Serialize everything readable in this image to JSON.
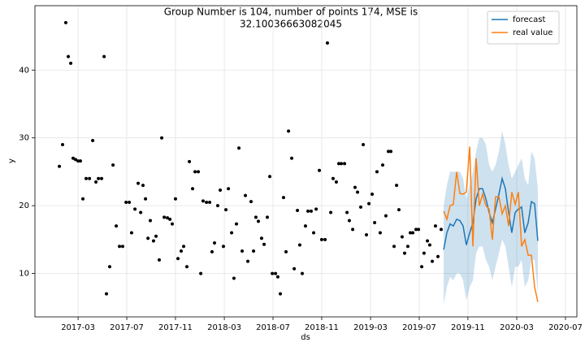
{
  "chart_data": {
    "type": "line",
    "title": [
      "Group Number is 104, number of points 174, MSE is",
      "32.10036663082045"
    ],
    "xlabel": "ds",
    "ylabel": "y",
    "xlim": [
      2016.872,
      2020.578
    ],
    "ylim": [
      3.6,
      49.5
    ],
    "xticks": [
      {
        "value": 2017.167,
        "label": "2017-03"
      },
      {
        "value": 2017.5,
        "label": "2017-07"
      },
      {
        "value": 2017.833,
        "label": "2017-11"
      },
      {
        "value": 2018.167,
        "label": "2018-03"
      },
      {
        "value": 2018.5,
        "label": "2018-07"
      },
      {
        "value": 2018.833,
        "label": "2018-11"
      },
      {
        "value": 2019.167,
        "label": "2019-03"
      },
      {
        "value": 2019.5,
        "label": "2019-07"
      },
      {
        "value": 2019.833,
        "label": "2019-11"
      },
      {
        "value": 2020.167,
        "label": "2020-03"
      },
      {
        "value": 2020.5,
        "label": "2020-07"
      }
    ],
    "yticks": [
      10,
      20,
      30,
      40
    ],
    "grid": true,
    "legend": "upper right",
    "points": {
      "color": "#000000",
      "x": [
        2017.039,
        2017.061,
        2017.083,
        2017.1,
        2017.117,
        2017.133,
        2017.15,
        2017.167,
        2017.183,
        2017.2,
        2017.222,
        2017.245,
        2017.267,
        2017.289,
        2017.306,
        2017.328,
        2017.345,
        2017.361,
        2017.383,
        2017.406,
        2017.428,
        2017.45,
        2017.472,
        2017.495,
        2017.517,
        2017.533,
        2017.556,
        2017.578,
        2017.595,
        2017.611,
        2017.628,
        2017.645,
        2017.661,
        2017.683,
        2017.7,
        2017.722,
        2017.739,
        2017.756,
        2017.778,
        2017.795,
        2017.811,
        2017.833,
        2017.85,
        2017.872,
        2017.889,
        2017.911,
        2017.928,
        2017.95,
        2017.967,
        2017.989,
        2018.006,
        2018.022,
        2018.045,
        2018.067,
        2018.083,
        2018.1,
        2018.122,
        2018.139,
        2018.161,
        2018.178,
        2018.195,
        2018.217,
        2018.233,
        2018.25,
        2018.267,
        2018.289,
        2018.311,
        2018.328,
        2018.35,
        2018.367,
        2018.383,
        2018.4,
        2018.422,
        2018.439,
        2018.461,
        2018.478,
        2018.495,
        2018.517,
        2018.533,
        2018.55,
        2018.572,
        2018.589,
        2018.606,
        2018.628,
        2018.645,
        2018.667,
        2018.683,
        2018.7,
        2018.722,
        2018.739,
        2018.761,
        2018.778,
        2018.795,
        2018.817,
        2018.833,
        2018.856,
        2018.872,
        2018.895,
        2018.911,
        2018.933,
        2018.95,
        2018.967,
        2018.989,
        2019.006,
        2019.022,
        2019.045,
        2019.061,
        2019.078,
        2019.1,
        2019.117,
        2019.139,
        2019.156,
        2019.178,
        2019.195,
        2019.211,
        2019.233,
        2019.25,
        2019.272,
        2019.289,
        2019.306,
        2019.328,
        2019.345,
        2019.361,
        2019.383,
        2019.4,
        2019.422,
        2019.439,
        2019.456,
        2019.478,
        2019.495,
        2019.517,
        2019.533,
        2019.556,
        2019.572,
        2019.589,
        2019.611,
        2019.628,
        2019.65
      ],
      "values": [
        25.8,
        29,
        47,
        42,
        41,
        27,
        26.8,
        26.6,
        26.6,
        21,
        24,
        24,
        29.6,
        23.5,
        24,
        24,
        42,
        7,
        11,
        26,
        17,
        14,
        14,
        20.5,
        20.5,
        16,
        19.5,
        23.3,
        19,
        23,
        21,
        15.2,
        17.8,
        14.8,
        15.5,
        12,
        30,
        18.3,
        18.2,
        18,
        17.3,
        21,
        12.2,
        13.3,
        14,
        11,
        26.5,
        22.5,
        25,
        25,
        10,
        20.7,
        20.5,
        20.5,
        13.2,
        14.5,
        20,
        22.3,
        14,
        19.4,
        22.5,
        16,
        9.3,
        17.3,
        28.5,
        13.3,
        21.5,
        11.8,
        20.6,
        13.3,
        18.3,
        17.7,
        15.2,
        14.3,
        18.3,
        24.3,
        10,
        10,
        9.5,
        7,
        21.2,
        13.2,
        31,
        27,
        10.7,
        19.3,
        14.2,
        10,
        17,
        19.2,
        19.2,
        16,
        19.5,
        25.2,
        15,
        15,
        44,
        19,
        24,
        23.5,
        26.2,
        26.2,
        26.2,
        19,
        17.8,
        16.5,
        22.7,
        22,
        19.8,
        29,
        15.7,
        20.3,
        21.7,
        17.5,
        25,
        16,
        26,
        18.5,
        28,
        28,
        14,
        23,
        19.4,
        15.4,
        13,
        14,
        16,
        16,
        16.5,
        16.5,
        11,
        13,
        14.8,
        14.2,
        11.8,
        17,
        12.5,
        16.5
      ]
    },
    "series": [
      {
        "name": "forecast",
        "color": "#1f77b4",
        "x": [
          2019.667,
          2019.689,
          2019.711,
          2019.733,
          2019.756,
          2019.778,
          2019.8,
          2019.822,
          2019.845,
          2019.867,
          2019.889,
          2019.911,
          2019.933,
          2019.956,
          2019.978,
          2020.0,
          2020.022,
          2020.045,
          2020.067,
          2020.089,
          2020.111,
          2020.133,
          2020.156,
          2020.178,
          2020.2,
          2020.222,
          2020.245,
          2020.267,
          2020.289,
          2020.311
        ],
        "values": [
          13.5,
          16,
          17.3,
          17,
          18,
          17.8,
          17,
          14.2,
          16,
          17.5,
          21,
          22.5,
          22.5,
          21,
          19,
          17.5,
          19.5,
          21.7,
          24,
          22.5,
          19,
          16,
          19,
          19.5,
          19.8,
          16,
          17.5,
          20.6,
          20.3,
          14.8
        ],
        "upper": [
          20,
          23,
          25,
          25,
          25,
          25,
          24,
          21,
          23,
          25,
          28,
          30,
          30,
          29,
          26,
          25,
          26,
          28,
          31,
          29,
          26,
          24,
          25,
          26,
          27,
          24,
          23,
          28,
          27,
          22.5
        ],
        "lower": [
          5.5,
          8,
          9.5,
          9,
          10,
          10,
          9,
          6,
          8,
          9,
          13,
          14,
          14,
          12,
          11,
          9,
          11,
          13,
          15,
          14,
          11,
          8,
          11,
          11,
          12,
          8,
          9,
          12,
          12,
          7
        ]
      },
      {
        "name": "real value",
        "color": "#ff7f0e",
        "x": [
          2019.667,
          2019.689,
          2019.711,
          2019.733,
          2019.756,
          2019.778,
          2019.8,
          2019.822,
          2019.845,
          2019.867,
          2019.889,
          2019.911,
          2019.933,
          2019.956,
          2019.978,
          2020.0,
          2020.022,
          2020.045,
          2020.067,
          2020.089,
          2020.111,
          2020.133,
          2020.156,
          2020.178,
          2020.2,
          2020.222,
          2020.245,
          2020.267,
          2020.289,
          2020.311
        ],
        "values": [
          19.2,
          18,
          20,
          20.2,
          25,
          21.8,
          21.7,
          22,
          28.7,
          14,
          27,
          20,
          21.7,
          20,
          19.5,
          15,
          21.3,
          21.3,
          18.8,
          20,
          17,
          22,
          20.2,
          22,
          14,
          15,
          12.7,
          12.7,
          8,
          5.8
        ]
      }
    ]
  }
}
